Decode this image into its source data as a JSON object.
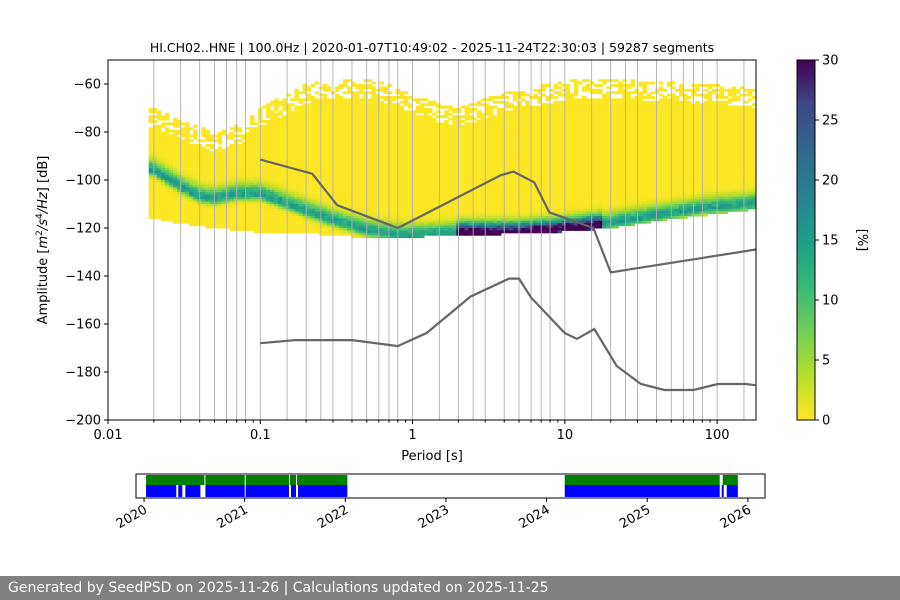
{
  "chart_data": [
    {
      "type": "heatmap",
      "title": "HI.CH02..HNE | 100.0Hz | 2020-01-07T10:49:02 - 2025-11-24T22:30:03 | 59287 segments",
      "xlabel": "Period [s]",
      "ylabel_parts": [
        "Amplitude [",
        "m",
        "2",
        "/",
        "s",
        "4",
        "/",
        "Hz",
        "] [dB]"
      ],
      "xscale": "log",
      "xlim": [
        0.01,
        180
      ],
      "ylim": [
        -200,
        -50
      ],
      "x_ticks": [
        0.01,
        0.1,
        1,
        10,
        100
      ],
      "x_tick_labels": [
        "0.01",
        "0.1",
        "1",
        "10",
        "100"
      ],
      "y_ticks": [
        -200,
        -180,
        -160,
        -140,
        -120,
        -100,
        -80,
        -60
      ],
      "y_tick_labels": [
        "−200",
        "−180",
        "−160",
        "−140",
        "−120",
        "−100",
        "−80",
        "−60"
      ],
      "grid": "vertical at frequency-bin periods",
      "grid_periods": [
        0.02,
        0.03,
        0.04,
        0.05,
        0.06,
        0.07,
        0.08,
        0.1,
        0.15,
        0.2,
        0.25,
        0.3,
        0.4,
        0.5,
        0.6,
        0.7,
        0.8,
        1.0,
        1.5,
        2.0,
        2.5,
        3.0,
        4.0,
        5.0,
        6.0,
        7.0,
        8.0,
        10,
        15,
        20,
        25,
        30,
        40,
        50,
        60,
        70,
        80,
        100,
        150
      ],
      "mode_curve": {
        "period": [
          0.02,
          0.025,
          0.03,
          0.04,
          0.05,
          0.07,
          0.1,
          0.15,
          0.2,
          0.3,
          0.5,
          0.8,
          1.2,
          2,
          3,
          5,
          8,
          12,
          20,
          40,
          80,
          180
        ],
        "db": [
          -96,
          -100,
          -103,
          -107,
          -108,
          -106,
          -106,
          -110,
          -113,
          -117,
          -121,
          -123,
          -123,
          -122,
          -122,
          -122,
          -121,
          -120,
          -118,
          -115,
          -112,
          -110
        ]
      },
      "envelope": {
        "period": [
          0.02,
          0.03,
          0.05,
          0.08,
          0.1,
          0.15,
          0.2,
          0.3,
          0.5,
          0.7,
          1,
          1.5,
          2,
          3,
          5,
          8,
          12,
          20,
          40,
          100,
          180
        ],
        "upper_db": [
          -70,
          -75,
          -80,
          -76,
          -70,
          -64,
          -60,
          -58,
          -58,
          -60,
          -64,
          -68,
          -70,
          -66,
          -62,
          -60,
          -58,
          -58,
          -59,
          -60,
          -62
        ],
        "lower_db": [
          -116,
          -118,
          -120,
          -121,
          -122,
          -122,
          -122,
          -123,
          -124,
          -124,
          -124,
          -123,
          -123,
          -123,
          -122,
          -122,
          -121,
          -120,
          -117,
          -114,
          -112
        ]
      },
      "noise_models": [
        {
          "name": "",
          "period": [
            0.1,
            0.22,
            0.32,
            0.8,
            3.8,
            4.6,
            6.3,
            7.9,
            15.4,
            20,
            354.8
          ],
          "db": [
            -91.5,
            -97.4,
            -110.5,
            -120,
            -98,
            -96.5,
            -101,
            -113.5,
            -120,
            -138.5,
            -126
          ]
        },
        {
          "name": "",
          "period": [
            0.1,
            0.17,
            0.4,
            0.8,
            1.24,
            2.4,
            4.3,
            5,
            6,
            10,
            12,
            15.6,
            21.9,
            31.6,
            45,
            70,
            101,
            154,
            178
          ],
          "db": [
            -168,
            -166.7,
            -166.7,
            -169.2,
            -163.7,
            -148.6,
            -141.1,
            -141.1,
            -149,
            -163.8,
            -166.2,
            -162.1,
            -177.5,
            -185,
            -187.5,
            -187.5,
            -185,
            -185,
            -185.5
          ]
        }
      ],
      "colorbar": {
        "label": "[%]",
        "min": 0,
        "max": 30,
        "ticks": [
          0,
          5,
          10,
          15,
          20,
          25,
          30
        ]
      }
    },
    {
      "type": "timeline",
      "x_tick_labels": [
        "2020",
        "2021",
        "2022",
        "2023",
        "2024",
        "2025",
        "2026"
      ],
      "xlim": [
        2019.92,
        2026.17
      ],
      "series": [
        {
          "name": "",
          "color": "#008000",
          "spans": [
            [
              2020.02,
              2020.6
            ],
            [
              2020.61,
              2021.0
            ],
            [
              2021.01,
              2021.44
            ],
            [
              2021.45,
              2021.51
            ],
            [
              2021.52,
              2022.02
            ],
            [
              2024.18,
              2025.72
            ],
            [
              2025.75,
              2025.9
            ]
          ]
        },
        {
          "name": "",
          "color": "#0000ff",
          "spans": [
            [
              2020.02,
              2020.32
            ],
            [
              2020.34,
              2020.38
            ],
            [
              2020.41,
              2020.56
            ],
            [
              2020.61,
              2021.0
            ],
            [
              2021.01,
              2021.44
            ],
            [
              2021.46,
              2021.51
            ],
            [
              2021.53,
              2022.02
            ],
            [
              2024.18,
              2025.72
            ],
            [
              2025.74,
              2025.76
            ],
            [
              2025.79,
              2025.9
            ]
          ]
        }
      ]
    }
  ],
  "footer": {
    "text": "Generated by SeedPSD on 2025-11-26 | Calculations updated on 2025-11-25"
  }
}
